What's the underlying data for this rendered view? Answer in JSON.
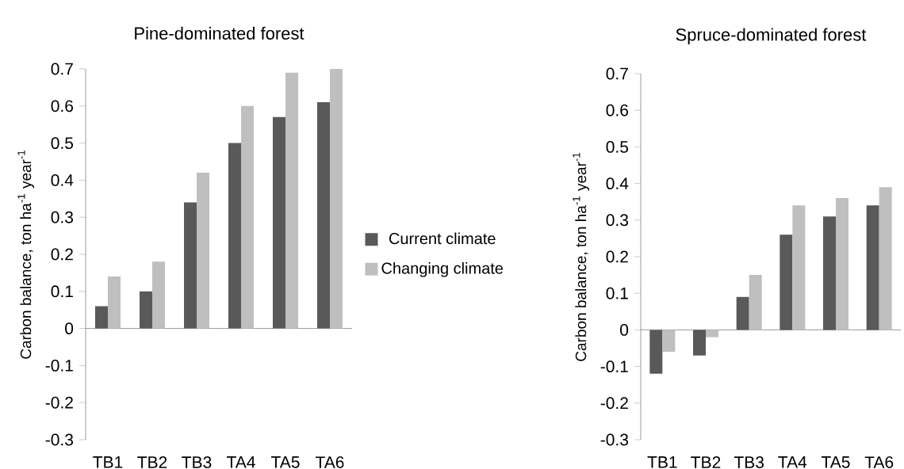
{
  "chart_data": [
    {
      "type": "bar",
      "title": "Pine-dominated forest",
      "ylabel": "Carbon balance, ton ha$^{-1}$ year$^{-1}$",
      "categories": [
        "TB1",
        "TB2",
        "TB3",
        "TA4",
        "TA5",
        "TA6"
      ],
      "ylim": [
        -0.3,
        0.7
      ],
      "yticks": [
        -0.3,
        -0.2,
        -0.1,
        0,
        0.1,
        0.2,
        0.3,
        0.4,
        0.5,
        0.6,
        0.7
      ],
      "legend": "right",
      "series": [
        {
          "name": "Current climate",
          "color": "#595959",
          "values": [
            0.06,
            0.1,
            0.34,
            0.5,
            0.57,
            0.61
          ]
        },
        {
          "name": "Changing climate",
          "color": "#bfbfbf",
          "values": [
            0.14,
            0.18,
            0.42,
            0.6,
            0.69,
            0.7
          ]
        }
      ]
    },
    {
      "type": "bar",
      "title": "Spruce-dominated forest",
      "ylabel": "Carbon balance, ton ha$^{-1}$ year$^{-1}$",
      "categories": [
        "TB1",
        "TB2",
        "TB3",
        "TA4",
        "TA5",
        "TA6"
      ],
      "ylim": [
        -0.3,
        0.7
      ],
      "yticks": [
        -0.3,
        -0.2,
        -0.1,
        0,
        0.1,
        0.2,
        0.3,
        0.4,
        0.5,
        0.6,
        0.7
      ],
      "legend": false,
      "series": [
        {
          "color": "#595959",
          "values": [
            -0.12,
            -0.07,
            0.09,
            0.26,
            0.31,
            0.34
          ]
        },
        {
          "color": "#bfbfbf",
          "values": [
            -0.06,
            -0.02,
            0.15,
            0.34,
            0.36,
            0.39
          ]
        }
      ]
    }
  ]
}
